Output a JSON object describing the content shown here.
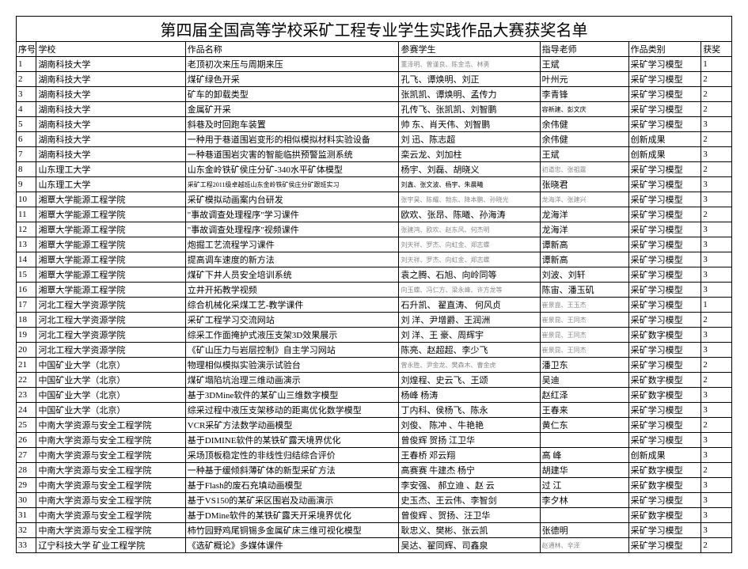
{
  "title": "第四届全国高等学校采矿工程专业学生实践作品大赛获奖名单",
  "headers": [
    "序号",
    "学校",
    "作品名称",
    "参赛学生",
    "指导老师",
    "作品类别",
    "获奖"
  ],
  "rows": [
    {
      "n": "1",
      "school": "湖南科技大学",
      "work": "老顶初次来压与周期来压",
      "stu": "董泽明、曾谨良、陈金浩、林勇",
      "stuGray": true,
      "stuTiny": true,
      "teach": "王斌",
      "cat": "采矿学习模型",
      "aw": "1"
    },
    {
      "n": "2",
      "school": "湖南科技大学",
      "work": "煤矿绿色开采",
      "stu": "孔飞、谭焕明、刘正",
      "teach": "叶州元",
      "cat": "采矿学习模型",
      "aw": "2"
    },
    {
      "n": "3",
      "school": "湖南科技大学",
      "work": "矿车的卸载类型",
      "stu": "张凯凯、谭焕明、孟传力",
      "teach": "李青锋",
      "cat": "采矿学习模型",
      "aw": "2"
    },
    {
      "n": "4",
      "school": "湖南科技大学",
      "work": "金属矿开采",
      "stu": "孔传飞、张凯凯、刘智鹏",
      "teach": "容新建、彭文庆",
      "teachTiny": true,
      "cat": "采矿学习模型",
      "aw": "2"
    },
    {
      "n": "5",
      "school": "湖南科技大学",
      "work": "斜巷及时回跑车装置",
      "stu": "帅 东、肖天伟、刘智鹏",
      "teach": "余伟健",
      "cat": "采矿学习模型",
      "aw": "3"
    },
    {
      "n": "6",
      "school": "湖南科技大学",
      "work": "一种用于巷道围岩变形的相似模拟材料实验设备",
      "stu": "刘 迅、陈志超",
      "teach": "余伟健",
      "cat": "创新成果",
      "aw": "2"
    },
    {
      "n": "7",
      "school": "湖南科技大学",
      "work": "一种巷道围岩灾害的智能临拱预警监测系统",
      "stu": "栾云龙、刘加柱",
      "teach": "王斌",
      "cat": "创新成果",
      "aw": "3"
    },
    {
      "n": "8",
      "school": "山东理工大学",
      "work": "山东金岭铁矿侯庄分矿-340水平矿体模型",
      "stu": "杨宇、刘磊、胡晓义",
      "teach": "初道忠、张祖霆",
      "teachGray": true,
      "teachTiny": true,
      "cat": "采矿学习模型",
      "aw": "2"
    },
    {
      "n": "9",
      "school": "山东理工大学",
      "work": "采矿工程2011级卓越班山东金岭铁矿侯庄分矿跟班实习",
      "workTiny": true,
      "stu": "刘鑫、张文波、杨宇、朱晨曦",
      "stuTiny": true,
      "teach": "张晓君",
      "cat": "采矿学习模型",
      "aw": "3"
    },
    {
      "n": "10",
      "school": "湘覃大学能源工程学院",
      "work": "采矿模拟动画案内台研发",
      "stu": "张宇昊、陈耀、勃东、降本鹏、孙晓光",
      "stuGray": true,
      "stuTiny": true,
      "teach": "龙海洋、张建兴",
      "teachGray": true,
      "teachTiny": true,
      "cat": "采矿学习模型",
      "aw": "3"
    },
    {
      "n": "11",
      "school": "湘覃大学能源工程学院",
      "work": "\"事故调查处理程序\"学习课件",
      "stu": "欧欢、张昂、陈曦、孙海涛",
      "teach": "龙海洋",
      "cat": "采矿学习模型",
      "aw": "2"
    },
    {
      "n": "12",
      "school": "湘覃大学能源工程学院",
      "work": "\"事故调查处理程序\"视频课件",
      "stu": "张建鸿、欧欢、赵东风、何杰明",
      "stuGray": true,
      "stuTiny": true,
      "teach": "龙海洋",
      "cat": "采矿学习模型",
      "aw": "3"
    },
    {
      "n": "13",
      "school": "湘覃大学能源工程学院",
      "work": "炮掘工艺流程学习课件",
      "stu": "刘天祥、罗杰、向虹金、郑志蝶",
      "stuGray": true,
      "stuTiny": true,
      "teach": "谭新高",
      "cat": "采矿学习模型",
      "aw": "3"
    },
    {
      "n": "14",
      "school": "湘覃大学能源工程学院",
      "work": "提高调车速度的新方法",
      "stu": "刘天祥、罗杰、向虹金、郑志蝶",
      "stuGray": true,
      "stuTiny": true,
      "teach": "谭新高",
      "cat": "采矿学习模型",
      "aw": "3"
    },
    {
      "n": "15",
      "school": "湘覃大学能源工程学院",
      "work": "煤矿下井人员安全培训系统",
      "stu": "袁之腾、石旭、向岭同等",
      "teach": "刘波、刘轩",
      "cat": "采矿学习模型",
      "aw": "3"
    },
    {
      "n": "16",
      "school": "湘覃大学能源工程学院",
      "work": "立井开拓教学视频",
      "stu": "向玉蝶、冯仁方、梁永峰、许方龙等",
      "stuGray": true,
      "stuTiny": true,
      "teach": "陈宙、潘玉矶",
      "cat": "采矿学习模型",
      "aw": "3"
    },
    {
      "n": "17",
      "school": "河北工程大学资源学院",
      "work": "综合机械化采煤工艺-教学课件",
      "stu": "石升凯、 翟直涛、 何风贞",
      "teach": "崔景崑、王玉杰",
      "teachGray": true,
      "teachTiny": true,
      "cat": "采矿学习模型",
      "aw": "1"
    },
    {
      "n": "18",
      "school": "河北工程大学资源学院",
      "work": "采矿工程学习交流网站",
      "stu": "刘 洋、尹增爵、王润洲",
      "teach": "崔景昆、王同杰",
      "teachGray": true,
      "teachTiny": true,
      "cat": "采矿学习模型",
      "aw": "2"
    },
    {
      "n": "19",
      "school": "河北工程大学资源学院",
      "work": "综采工作面掩护式液压支架3D效果展示",
      "stu": "刘 洋、王 豪、周辉宇",
      "teach": "崔景昆、王同杰",
      "teachGray": true,
      "teachTiny": true,
      "cat": "采矿数字模型",
      "aw": "3"
    },
    {
      "n": "20",
      "school": "河北工程大学资源学院",
      "work": "《矿山压力与岩层控制》自主学习网站",
      "stu": "陈亮、赵超超、李少飞",
      "teach": "崔景昆、王同杰",
      "teachGray": true,
      "teachTiny": true,
      "cat": "采矿学习模型",
      "aw": "3"
    },
    {
      "n": "21",
      "school": "中国矿业大学（北京）",
      "work": "物理相似模拟实验演示试验台",
      "stu": "曾永胜、尹金龙、樊森木、曹金虎",
      "stuGray": true,
      "stuTiny": true,
      "teach": "潘卫东",
      "cat": "采矿学习模型",
      "aw": "2"
    },
    {
      "n": "22",
      "school": "中国矿业大学（北京）",
      "work": "煤矿塌陷坑治理三维动画演示",
      "stu": "刘煌程、史云飞、王颂",
      "teach": "吴迪",
      "cat": "采矿数字模型",
      "aw": "2"
    },
    {
      "n": "23",
      "school": "中国矿业大学（北京）",
      "work": "基于3DMine软件的某矿山三维数字模型",
      "stu": "杨峰  杨涛",
      "teach": "赵红泽",
      "cat": "采矿数字模型",
      "aw": "3"
    },
    {
      "n": "24",
      "school": "中国矿业大学（北京）",
      "work": "综采过程中液压支架移动的距离优化数学模型",
      "stu": "丁内科、侯杨飞、陈永",
      "teach": "王春来",
      "cat": "采矿学习模型",
      "aw": "3"
    },
    {
      "n": "25",
      "school": "中南大学资源与安全工程学院",
      "work": "VCR采矿方法数学动画模型",
      "stu": "刘俊、 陈冲 、牛艳艳",
      "teach": "黄仁东",
      "cat": "采矿学习模型",
      "aw": "2"
    },
    {
      "n": "26",
      "school": "中南大学资源与安全工程学院",
      "work": "基于DIMINE软件的某铁矿露天境界优化",
      "stu": "曾俊辉  贺扬  江卫华",
      "teach": "",
      "cat": "采矿学习模型",
      "aw": "3"
    },
    {
      "n": "27",
      "school": "中南大学资源与安全工程学院",
      "work": "采场顶板稳定性的非线性归结综合评价",
      "stu": "王春桥  邓云翔",
      "teach": "高  峰",
      "cat": "创新成果",
      "aw": "3"
    },
    {
      "n": "28",
      "school": "中南大学资源与安全工程学院",
      "work": "一种基于缓倾斜薄矿体的新型采矿方法",
      "stu": "高赛赛  牛建杰  杨宁",
      "teach": "胡建华",
      "cat": "采矿数字模型",
      "aw": "2"
    },
    {
      "n": "29",
      "school": "中南大学资源与安全工程学院",
      "work": "基于Flash的废石充填动画模型",
      "stu": "李安强、 郝立迪 、赵  云",
      "teach": "过  江",
      "cat": "采矿数字模型",
      "aw": "3"
    },
    {
      "n": "30",
      "school": "中南大学资源与安全工程学院",
      "work": "基于VS150的某矿采区围岩及动画演示",
      "stu": "史玉杰、王云伟、李智剑",
      "teach": "李夕林",
      "cat": "采矿学习模型",
      "aw": "3"
    },
    {
      "n": "31",
      "school": "中南大学资源与安全工程学院",
      "work": "基于DMine软件的某铁矿露天开采境界优化",
      "stu": "曾俊辉 、贺扬、汪卫华",
      "teach": "",
      "cat": "采矿数字模型",
      "aw": "3"
    },
    {
      "n": "32",
      "school": "中南大学资源与安全工程学院",
      "work": "柿竹园野鸡尾铜锡多金属矿床三维可视化模型",
      "stu": "耿忠义、樊彬、张云凯",
      "teach": "张德明",
      "cat": "采矿学习模型",
      "aw": "3"
    },
    {
      "n": "33",
      "school": "辽宁科技大学  矿业工程学院",
      "work": "《选矿概论》多媒体课件",
      "stu": "吴达、翟同辉、司鑫泉",
      "teach": "赵通林、辛泽",
      "teachGray": true,
      "teachTiny": true,
      "cat": "采矿学习模型",
      "aw": "2"
    }
  ],
  "col_widths": [
    "25px",
    "185px",
    "265px",
    "175px",
    "110px",
    "90px",
    "38px"
  ]
}
